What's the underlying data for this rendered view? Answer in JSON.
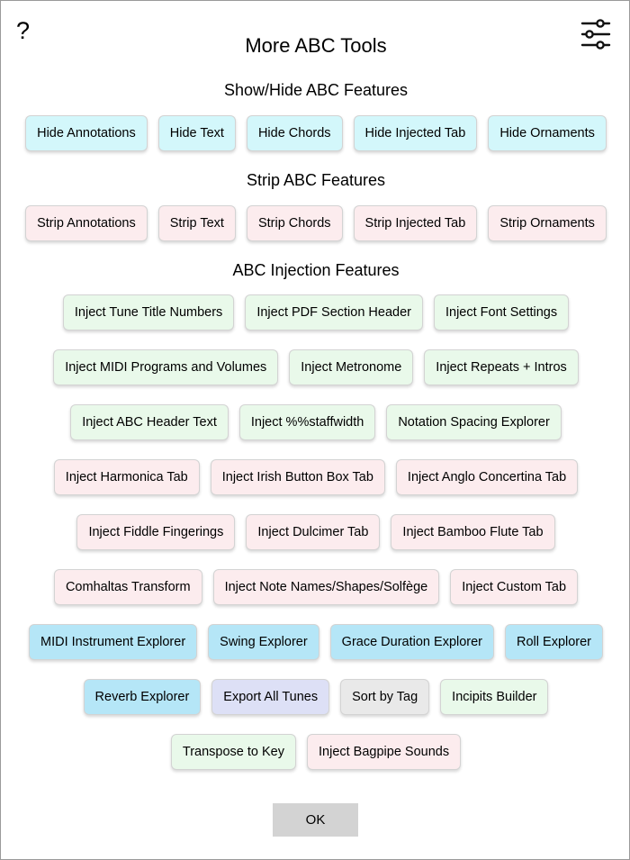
{
  "header": {
    "help_glyph": "?",
    "title": "More ABC Tools",
    "settings_icon": "sliders-icon"
  },
  "colors": {
    "cyan": "#d3f7fb",
    "pink": "#fcecee",
    "green": "#e9f9ea",
    "blue": "#b5e6f7",
    "lavender": "#dde0f6",
    "gray": "#e9e9e9",
    "ok": "#d3d3d3"
  },
  "sections": {
    "show_hide": "Show/Hide ABC Features",
    "strip": "Strip ABC Features",
    "injection": "ABC Injection Features"
  },
  "show_hide_buttons": [
    "Hide Annotations",
    "Hide Text",
    "Hide Chords",
    "Hide Injected Tab",
    "Hide Ornaments"
  ],
  "strip_buttons": [
    "Strip Annotations",
    "Strip Text",
    "Strip Chords",
    "Strip Injected Tab",
    "Strip Ornaments"
  ],
  "injection_rows": [
    [
      "Inject Tune Title Numbers",
      "Inject PDF Section Header",
      "Inject Font Settings"
    ],
    [
      "Inject MIDI Programs and Volumes",
      "Inject Metronome",
      "Inject Repeats + Intros"
    ],
    [
      "Inject ABC Header Text",
      "Inject %%staffwidth",
      "Notation Spacing Explorer"
    ],
    [
      "Inject Harmonica Tab",
      "Inject Irish Button Box Tab",
      "Inject Anglo Concertina Tab"
    ],
    [
      "Inject Fiddle Fingerings",
      "Inject Dulcimer Tab",
      "Inject Bamboo Flute Tab"
    ],
    [
      "Comhaltas Transform",
      "Inject Note Names/Shapes/Solfège",
      "Inject Custom Tab"
    ],
    [
      "MIDI Instrument Explorer",
      "Swing Explorer",
      "Grace Duration Explorer",
      "Roll Explorer"
    ],
    [
      "Reverb Explorer",
      "Export All Tunes",
      "Sort by Tag",
      "Incipits Builder"
    ],
    [
      "Transpose to Key",
      "Inject Bagpipe Sounds"
    ]
  ],
  "ok_label": "OK"
}
